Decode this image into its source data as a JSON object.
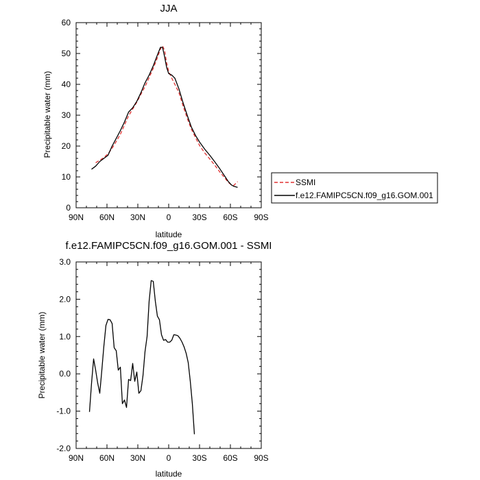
{
  "chart_data": [
    {
      "type": "line",
      "title": "JJA",
      "xlabel": "latitude",
      "ylabel": "Precipitable water (mm)",
      "xlim": [
        90,
        -90
      ],
      "ylim": [
        0,
        60
      ],
      "x_ticks": [
        90,
        60,
        30,
        0,
        -30,
        -60,
        -90
      ],
      "x_tick_labels": [
        "90N",
        "60N",
        "30N",
        "0",
        "30S",
        "60S",
        "90S"
      ],
      "y_ticks": [
        0,
        10,
        20,
        30,
        40,
        50,
        60
      ],
      "y_tick_labels": [
        "0",
        "10",
        "20",
        "30",
        "40",
        "50",
        "60"
      ],
      "legend_position": "right",
      "series": [
        {
          "name": "SSMI",
          "style": "dashed",
          "color": "#e03030",
          "points": [
            [
              71,
              14.6
            ],
            [
              67,
              15.4
            ],
            [
              63,
              16.3
            ],
            [
              59,
              17.5
            ],
            [
              55,
              19.3
            ],
            [
              51,
              21.5
            ],
            [
              47,
              23.8
            ],
            [
              43,
              26.8
            ],
            [
              39,
              29.8
            ],
            [
              35,
              32.0
            ],
            [
              31,
              34.2
            ],
            [
              27,
              36.8
            ],
            [
              23,
              39.3
            ],
            [
              19,
              42.2
            ],
            [
              15,
              45.2
            ],
            [
              11,
              48.6
            ],
            [
              8,
              51.5
            ],
            [
              6,
              52.5
            ],
            [
              4,
              51.0
            ],
            [
              2,
              47.0
            ],
            [
              0,
              44.2
            ],
            [
              -3,
              42.0
            ],
            [
              -6,
              40.0
            ],
            [
              -10,
              37.3
            ],
            [
              -14,
              33.0
            ],
            [
              -18,
              29.0
            ],
            [
              -22,
              25.5
            ],
            [
              -26,
              22.8
            ],
            [
              -30,
              20.2
            ],
            [
              -35,
              17.8
            ],
            [
              -40,
              15.8
            ],
            [
              -45,
              13.7
            ],
            [
              -50,
              11.5
            ],
            [
              -55,
              9.5
            ],
            [
              -58,
              8.2
            ],
            [
              -61,
              7.4
            ],
            [
              -63,
              7.2
            ],
            [
              -65,
              7.8
            ],
            [
              -67,
              8.5
            ]
          ]
        },
        {
          "name": "f.e12.FAMIPC5CN.f09_g16.GOM.001",
          "style": "solid",
          "color": "#000000",
          "points": [
            [
              75,
              12.5
            ],
            [
              71,
              13.5
            ],
            [
              67,
              15.0
            ],
            [
              63,
              16.0
            ],
            [
              59,
              17.0
            ],
            [
              55,
              20.0
            ],
            [
              51,
              22.5
            ],
            [
              47,
              25.0
            ],
            [
              43,
              27.8
            ],
            [
              39,
              31.0
            ],
            [
              35,
              32.4
            ],
            [
              31,
              34.5
            ],
            [
              27,
              37.3
            ],
            [
              23,
              40.5
            ],
            [
              19,
              43.0
            ],
            [
              15,
              46.0
            ],
            [
              11,
              49.5
            ],
            [
              8,
              52.0
            ],
            [
              6,
              52.0
            ],
            [
              4,
              49.0
            ],
            [
              2,
              45.5
            ],
            [
              0,
              43.5
            ],
            [
              -3,
              43.0
            ],
            [
              -6,
              42.0
            ],
            [
              -10,
              38.5
            ],
            [
              -14,
              34.0
            ],
            [
              -18,
              30.0
            ],
            [
              -22,
              26.2
            ],
            [
              -26,
              23.5
            ],
            [
              -30,
              21.3
            ],
            [
              -35,
              19.0
            ],
            [
              -40,
              17.0
            ],
            [
              -45,
              14.8
            ],
            [
              -50,
              12.5
            ],
            [
              -55,
              10.0
            ],
            [
              -58,
              8.5
            ],
            [
              -61,
              7.4
            ],
            [
              -63,
              7.0
            ],
            [
              -65,
              6.8
            ],
            [
              -67,
              6.6
            ]
          ]
        }
      ]
    },
    {
      "type": "line",
      "title": "f.e12.FAMIPC5CN.f09_g16.GOM.001 - SSMI",
      "xlabel": "latitude",
      "ylabel": "Precipitable water (mm)",
      "xlim": [
        90,
        -90
      ],
      "ylim": [
        -2.0,
        3.0
      ],
      "x_ticks": [
        90,
        60,
        30,
        0,
        -30,
        -60,
        -90
      ],
      "x_tick_labels": [
        "90N",
        "60N",
        "30N",
        "0",
        "30S",
        "60S",
        "90S"
      ],
      "y_ticks": [
        -2.0,
        -1.0,
        0.0,
        1.0,
        2.0,
        3.0
      ],
      "y_tick_labels": [
        "-2.0",
        "-1.0",
        "0.0",
        "1.0",
        "2.0",
        "3.0"
      ],
      "series": [
        {
          "style": "solid",
          "color": "#000000",
          "points": [
            [
              77,
              -1.02
            ],
            [
              75,
              -0.25
            ],
            [
              73,
              0.4
            ],
            [
              71,
              0.1
            ],
            [
              69,
              -0.25
            ],
            [
              67,
              -0.52
            ],
            [
              65,
              0.1
            ],
            [
              63,
              0.75
            ],
            [
              61,
              1.3
            ],
            [
              59,
              1.46
            ],
            [
              57,
              1.45
            ],
            [
              55,
              1.35
            ],
            [
              53,
              0.7
            ],
            [
              51,
              0.62
            ],
            [
              49,
              0.1
            ],
            [
              47,
              0.18
            ],
            [
              45,
              -0.8
            ],
            [
              43,
              -0.7
            ],
            [
              41,
              -0.9
            ],
            [
              39,
              -0.15
            ],
            [
              37,
              -0.18
            ],
            [
              35,
              0.28
            ],
            [
              33,
              -0.2
            ],
            [
              31,
              0.05
            ],
            [
              29,
              -0.52
            ],
            [
              27,
              -0.45
            ],
            [
              25,
              -0.05
            ],
            [
              23,
              0.6
            ],
            [
              21,
              1.0
            ],
            [
              19,
              1.95
            ],
            [
              17,
              2.5
            ],
            [
              15,
              2.48
            ],
            [
              13,
              1.95
            ],
            [
              11,
              1.55
            ],
            [
              9,
              1.45
            ],
            [
              7,
              1.05
            ],
            [
              5,
              0.9
            ],
            [
              3,
              0.92
            ],
            [
              1,
              0.85
            ],
            [
              -1,
              0.85
            ],
            [
              -3,
              0.9
            ],
            [
              -5,
              1.05
            ],
            [
              -7,
              1.04
            ],
            [
              -9,
              1.02
            ],
            [
              -11,
              0.95
            ],
            [
              -13,
              0.85
            ],
            [
              -15,
              0.72
            ],
            [
              -17,
              0.55
            ],
            [
              -19,
              0.3
            ],
            [
              -21,
              -0.2
            ],
            [
              -23,
              -0.8
            ],
            [
              -25,
              -1.62
            ]
          ]
        }
      ]
    }
  ]
}
